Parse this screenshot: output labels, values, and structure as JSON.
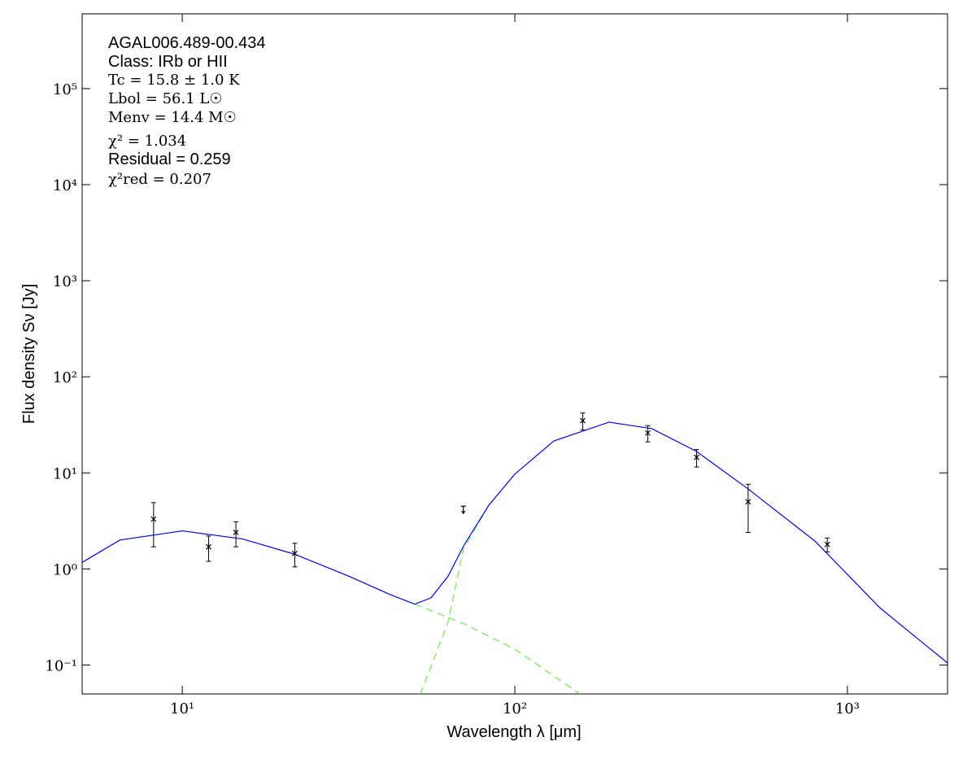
{
  "chart_data": {
    "type": "sed",
    "xlabel": "Wavelength λ [μm]",
    "ylabel": "Flux density Sν [Jy]",
    "xscale": "log",
    "yscale": "log",
    "xlim": [
      5,
      2000
    ],
    "ylim": [
      0.05,
      600000
    ],
    "xticks": [
      {
        "value": 10,
        "label": "10¹"
      },
      {
        "value": 100,
        "label": "10²"
      },
      {
        "value": 1000,
        "label": "10³"
      }
    ],
    "yticks": [
      {
        "value": 0.1,
        "label": "10⁻¹"
      },
      {
        "value": 1,
        "label": "10⁰"
      },
      {
        "value": 10,
        "label": "10¹"
      },
      {
        "value": 100,
        "label": "10²"
      },
      {
        "value": 1000,
        "label": "10³"
      },
      {
        "value": 10000,
        "label": "10⁴"
      },
      {
        "value": 100000,
        "label": "10⁵"
      }
    ],
    "annotations": [
      "AGAL006.489-00.434",
      "Class: IRb or HII",
      "Tc = 15.8 ± 1.0 K",
      "Lbol = 56.1 L☉",
      "Menv = 14.4 M☉",
      "χ² = 1.034",
      "Residual = 0.259",
      "χ²red = 0.207"
    ],
    "points": {
      "color": "#000000",
      "x": [
        8.2,
        12,
        14.5,
        21.8,
        160,
        251,
        352,
        503,
        870
      ],
      "values": [
        3.3,
        1.7,
        2.4,
        1.45,
        35,
        26,
        14.5,
        5,
        1.8
      ],
      "errors": [
        1.6,
        0.5,
        0.7,
        0.4,
        7,
        5,
        3,
        2.6,
        0.3
      ]
    },
    "upper_limits": {
      "color": "#000000",
      "x": [
        70
      ],
      "values": [
        4.5
      ]
    },
    "model": {
      "color": "#0000ff",
      "x": [
        5,
        6.5,
        10,
        15.2,
        21.8,
        31.7,
        42.2,
        50,
        56,
        63,
        70.3,
        83.5,
        100,
        131,
        192,
        258,
        352,
        503,
        800,
        1256,
        2042
      ],
      "values": [
        1.17,
        2.0,
        2.49,
        2.05,
        1.42,
        0.84,
        0.54,
        0.43,
        0.5,
        0.84,
        1.76,
        4.6,
        9.7,
        21.5,
        33.7,
        28.9,
        16.7,
        6.8,
        1.94,
        0.39,
        0.099
      ]
    },
    "components": [
      {
        "color": "#66ee44",
        "x": [
          50,
          70,
          100,
          157
        ],
        "values": [
          0.43,
          0.27,
          0.146,
          0.05
        ]
      },
      {
        "color": "#66ee44",
        "x": [
          52,
          63,
          70,
          83.5
        ],
        "values": [
          0.05,
          0.28,
          1.6,
          4.6
        ]
      }
    ]
  }
}
